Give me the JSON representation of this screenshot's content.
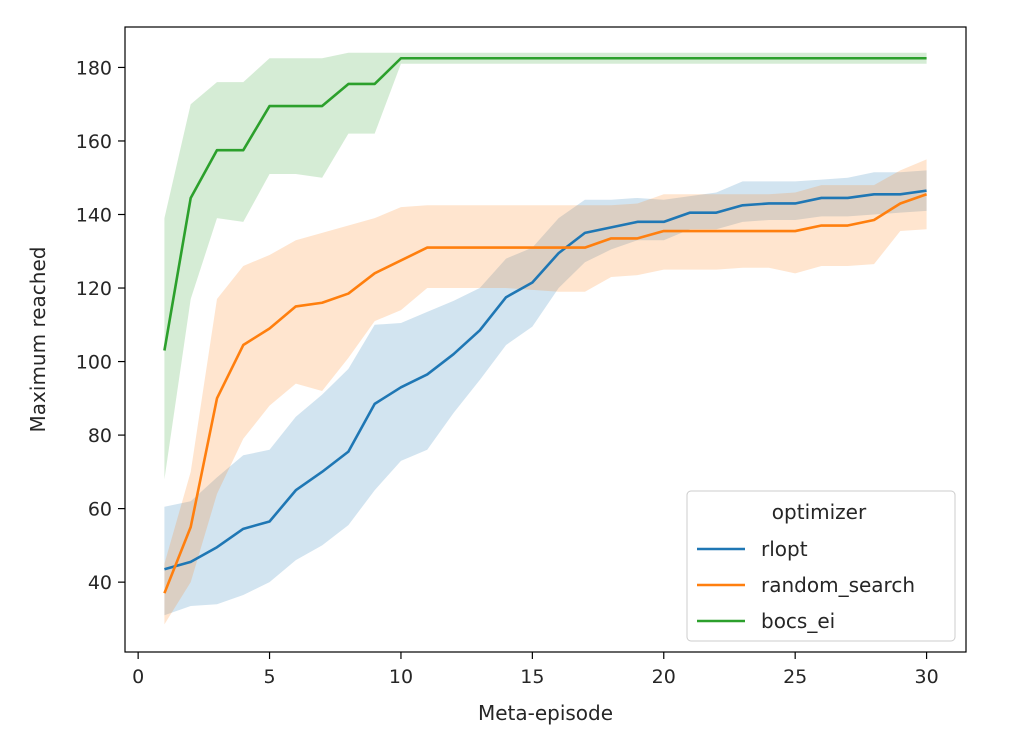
{
  "chart_data": {
    "type": "line",
    "xlabel": "Meta-episode",
    "ylabel": "Maximum reached",
    "xlim": [
      -0.5,
      31.5
    ],
    "ylim": [
      21,
      191
    ],
    "xticks": [
      0,
      5,
      10,
      15,
      20,
      25,
      30
    ],
    "yticks": [
      40,
      60,
      80,
      100,
      120,
      140,
      160,
      180
    ],
    "grid": false,
    "legend": {
      "title": "optimizer",
      "placement": "bottom-right",
      "entries": [
        "rlopt",
        "random_search",
        "bocs_ei"
      ]
    },
    "series": [
      {
        "name": "rlopt",
        "color": "#1f77b4",
        "x": [
          1,
          2,
          3,
          4,
          5,
          6,
          7,
          8,
          9,
          10,
          11,
          12,
          13,
          14,
          15,
          16,
          17,
          18,
          19,
          20,
          21,
          22,
          23,
          24,
          25,
          26,
          27,
          28,
          29,
          30
        ],
        "y": [
          43.5,
          45.5,
          49.5,
          54.5,
          56.5,
          65,
          70,
          75.5,
          88.5,
          93,
          96.5,
          102,
          108.5,
          117.5,
          121.5,
          129.5,
          135,
          136.5,
          138,
          138,
          140.5,
          140.5,
          142.5,
          143,
          143,
          144.5,
          144.5,
          145.5,
          145.5,
          146.5
        ],
        "lower": [
          31,
          33.5,
          34,
          36.5,
          40,
          46,
          50,
          55.5,
          65,
          73,
          76,
          86,
          95,
          104.5,
          109.5,
          120,
          127,
          130.5,
          133,
          133,
          136,
          136,
          138,
          138.5,
          138.5,
          139.5,
          139.5,
          140,
          140.5,
          141
        ],
        "upper": [
          60.5,
          62,
          68.5,
          74.5,
          76,
          85,
          91,
          98,
          110,
          110.5,
          113.5,
          116.5,
          120,
          128,
          131,
          139,
          144,
          144,
          144.5,
          144,
          145,
          146,
          149,
          149,
          149,
          149.5,
          150,
          151.5,
          151.5,
          152
        ]
      },
      {
        "name": "random_search",
        "color": "#ff7f0e",
        "x": [
          1,
          2,
          3,
          4,
          5,
          6,
          7,
          8,
          9,
          10,
          11,
          12,
          13,
          14,
          15,
          16,
          17,
          18,
          19,
          20,
          21,
          22,
          23,
          24,
          25,
          26,
          27,
          28,
          29,
          30
        ],
        "y": [
          37,
          55,
          90,
          104.5,
          109,
          115,
          116,
          118.5,
          124,
          127.5,
          131,
          131,
          131,
          131,
          131,
          131,
          131,
          133.5,
          133.5,
          135.5,
          135.5,
          135.5,
          135.5,
          135.5,
          135.5,
          137,
          137,
          138.5,
          143,
          145.5
        ],
        "lower": [
          28.5,
          40,
          64,
          79,
          88,
          94,
          92,
          101,
          111,
          114,
          120,
          120,
          120,
          120,
          119.5,
          119,
          119,
          123,
          123.5,
          125,
          125,
          125,
          125.5,
          125.5,
          124,
          126,
          126,
          126.5,
          135.5,
          136
        ],
        "upper": [
          45,
          70,
          117,
          126,
          129,
          133,
          135,
          137,
          139,
          142,
          142.5,
          142.5,
          142.5,
          142.5,
          142.5,
          142.5,
          142.5,
          142.5,
          143,
          145.5,
          145.5,
          145.5,
          145.5,
          145.5,
          146,
          148,
          148,
          148,
          152,
          155
        ]
      },
      {
        "name": "bocs_ei",
        "color": "#2ca02c",
        "x": [
          1,
          2,
          3,
          4,
          5,
          6,
          7,
          8,
          9,
          10,
          11,
          12,
          13,
          14,
          15,
          16,
          17,
          18,
          19,
          20,
          21,
          22,
          23,
          24,
          25,
          26,
          27,
          28,
          29,
          30
        ],
        "y": [
          103,
          144.5,
          157.5,
          157.5,
          169.5,
          169.5,
          169.5,
          175.5,
          175.5,
          182.5,
          182.5,
          182.5,
          182.5,
          182.5,
          182.5,
          182.5,
          182.5,
          182.5,
          182.5,
          182.5,
          182.5,
          182.5,
          182.5,
          182.5,
          182.5,
          182.5,
          182.5,
          182.5,
          182.5,
          182.5
        ],
        "lower": [
          68,
          117,
          139,
          138,
          151,
          151,
          150,
          162,
          162,
          181,
          181,
          181,
          181,
          181,
          181,
          181,
          181,
          181,
          181,
          181,
          181,
          181,
          181,
          181,
          181,
          181,
          181,
          181,
          181,
          181
        ],
        "upper": [
          139,
          170,
          176,
          176,
          182.5,
          182.5,
          182.5,
          184,
          184,
          184,
          184,
          184,
          184,
          184,
          184,
          184,
          184,
          184,
          184,
          184,
          184,
          184,
          184,
          184,
          184,
          184,
          184,
          184,
          184,
          184
        ]
      }
    ]
  }
}
